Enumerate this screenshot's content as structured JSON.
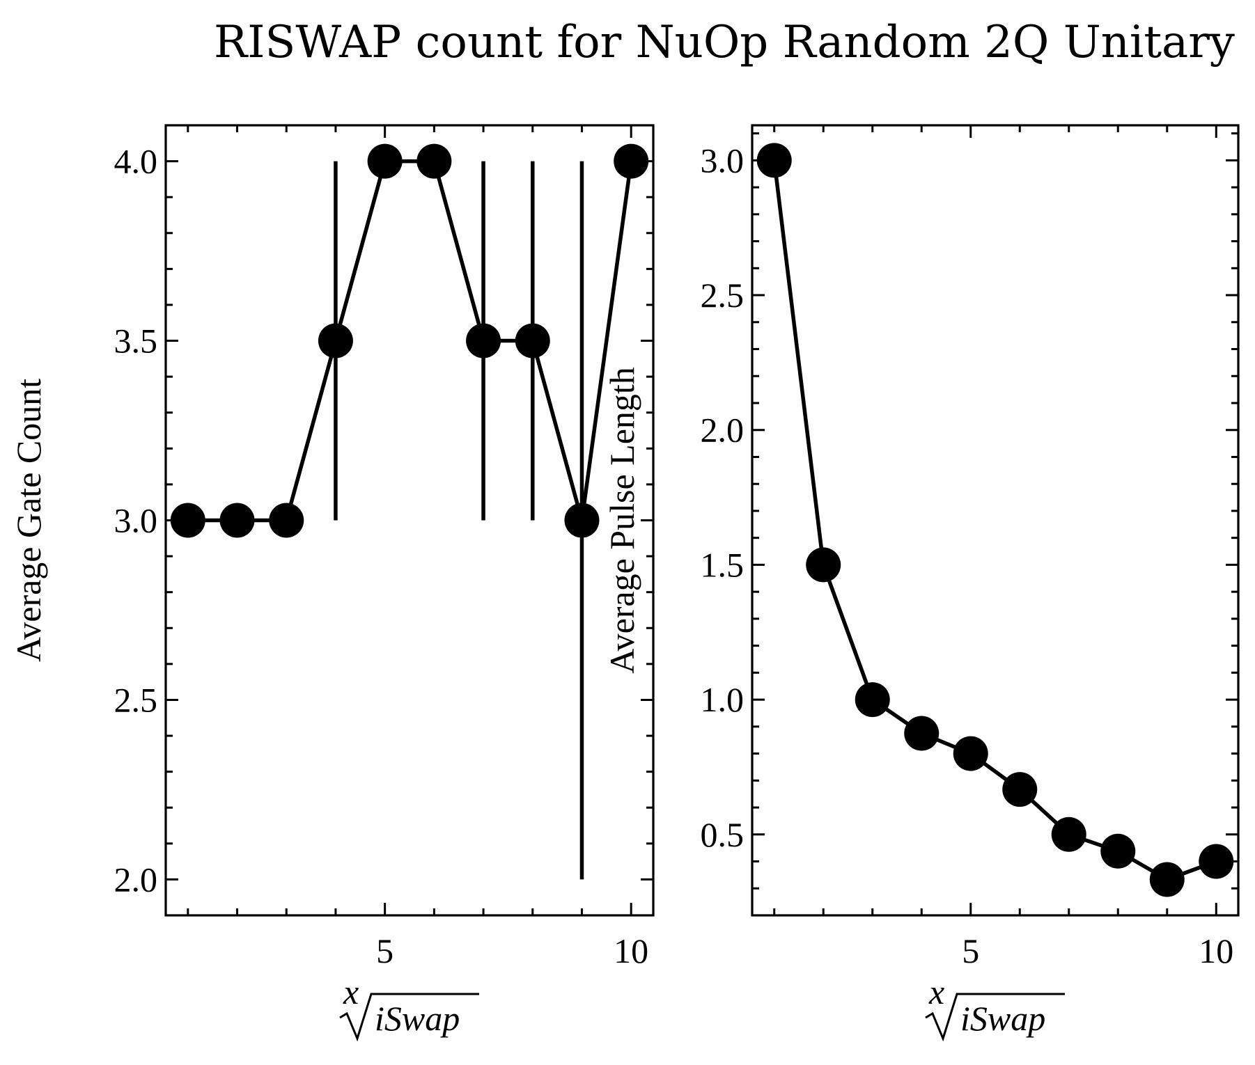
{
  "title": "RISWAP count for NuOp Random 2Q Unitary",
  "colors": {
    "series": "#000000",
    "background": "#ffffff"
  },
  "chart_data": [
    {
      "type": "line",
      "xlabel_root_index": "x",
      "xlabel_radicand": "iSwap",
      "ylabel": "Average Gate Count",
      "xlim": [
        0.55,
        10.45
      ],
      "ylim": [
        1.9,
        4.1
      ],
      "x_ticks": [
        5,
        10
      ],
      "y_ticks": [
        2.0,
        2.5,
        3.0,
        3.5,
        4.0
      ],
      "x_tick_labels": [
        "5",
        "10"
      ],
      "y_tick_labels": [
        "2.0",
        "2.5",
        "3.0",
        "3.5",
        "4.0"
      ],
      "grid": false,
      "series": [
        {
          "x": [
            1,
            2,
            3,
            4,
            5,
            6,
            7,
            8,
            9,
            10
          ],
          "y": [
            3.0,
            3.0,
            3.0,
            3.5,
            4.0,
            4.0,
            3.5,
            3.5,
            3.0,
            4.0
          ],
          "yerr": [
            0,
            0,
            0,
            0.5,
            0,
            0,
            0.5,
            0.5,
            1.0,
            0
          ]
        }
      ]
    },
    {
      "type": "line",
      "xlabel_root_index": "x",
      "xlabel_radicand": "iSwap",
      "ylabel": "Average Pulse Length",
      "xlim": [
        0.55,
        10.45
      ],
      "ylim": [
        0.2,
        3.13
      ],
      "x_ticks": [
        5,
        10
      ],
      "y_ticks": [
        0.5,
        1.0,
        1.5,
        2.0,
        2.5,
        3.0
      ],
      "x_tick_labels": [
        "5",
        "10"
      ],
      "y_tick_labels": [
        "0.5",
        "1.0",
        "1.5",
        "2.0",
        "2.5",
        "3.0"
      ],
      "grid": false,
      "series": [
        {
          "x": [
            1,
            2,
            3,
            4,
            5,
            6,
            7,
            8,
            9,
            10
          ],
          "y": [
            3.0,
            1.5,
            1.0,
            0.875,
            0.8,
            0.667,
            0.5,
            0.438,
            0.333,
            0.4
          ]
        }
      ]
    }
  ]
}
